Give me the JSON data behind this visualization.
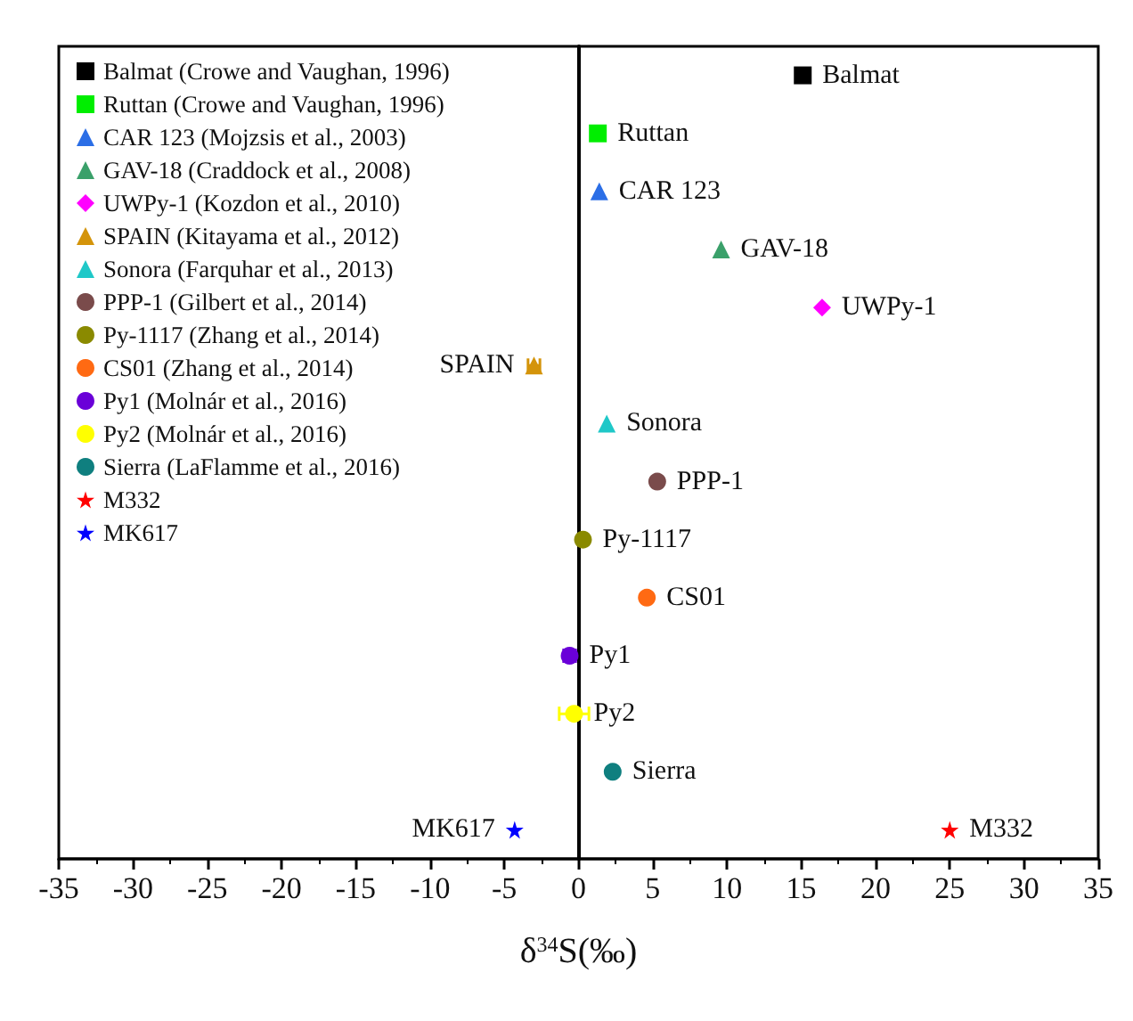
{
  "chart_data": {
    "type": "scatter",
    "orientation": "horizontal",
    "xlabel": "δ$^{34}$S(‰)",
    "categories": [
      null,
      null,
      null,
      null,
      null,
      null,
      null,
      null,
      null,
      null,
      null,
      null,
      null,
      null
    ],
    "xlim": [
      -35,
      35
    ],
    "xticks": [
      -35,
      -30,
      -25,
      -20,
      -15,
      -10,
      -5,
      0,
      5,
      10,
      15,
      20,
      25,
      30,
      35
    ],
    "legend": "top left",
    "series": [
      {
        "name": "Balmat (Crowe and Vaughan, 1996)",
        "color": "#000000",
        "marker": "square",
        "values": [
          15.1,
          null,
          null,
          null,
          null,
          null,
          null,
          null,
          null,
          null,
          null,
          null,
          null,
          null
        ],
        "value_labels": [
          "Balmat",
          null,
          null,
          null,
          null,
          null,
          null,
          null,
          null,
          null,
          null,
          null,
          null,
          null
        ]
      },
      {
        "name": "Ruttan (Crowe and Vaughan, 1996)",
        "color": "#00ee00",
        "marker": "square",
        "values": [
          null,
          1.3,
          null,
          null,
          null,
          null,
          null,
          null,
          null,
          null,
          null,
          null,
          null,
          null
        ],
        "value_labels": [
          null,
          "Ruttan",
          null,
          null,
          null,
          null,
          null,
          null,
          null,
          null,
          null,
          null,
          null,
          null
        ]
      },
      {
        "name": "CAR 123 (Mojzsis et al., 2003)",
        "color": "#2b6ee6",
        "marker": "triangle",
        "values": [
          null,
          null,
          1.4,
          null,
          null,
          null,
          null,
          null,
          null,
          null,
          null,
          null,
          null,
          null
        ],
        "value_labels": [
          null,
          null,
          "CAR 123",
          null,
          null,
          null,
          null,
          null,
          null,
          null,
          null,
          null,
          null,
          null
        ]
      },
      {
        "name": "GAV-18 (Craddock et al., 2008)",
        "color": "#3aa06a",
        "marker": "triangle",
        "values": [
          null,
          null,
          null,
          9.6,
          null,
          null,
          null,
          null,
          null,
          null,
          null,
          null,
          null,
          null
        ],
        "value_labels": [
          null,
          null,
          null,
          "GAV-18",
          null,
          null,
          null,
          null,
          null,
          null,
          null,
          null,
          null,
          null
        ]
      },
      {
        "name": "UWPy-1 (Kozdon et al., 2010)",
        "color": "#ff00ff",
        "marker": "diamond",
        "values": [
          null,
          null,
          null,
          null,
          16.4,
          null,
          null,
          null,
          null,
          null,
          null,
          null,
          null,
          null
        ],
        "value_labels": [
          null,
          null,
          null,
          null,
          "UWPy-1",
          null,
          null,
          null,
          null,
          null,
          null,
          null,
          null,
          null
        ]
      },
      {
        "name": "SPAIN (Kitayama et al., 2012)",
        "color": "#d4940a",
        "marker": "triangle",
        "values": [
          null,
          null,
          null,
          null,
          null,
          -3.0,
          null,
          null,
          null,
          null,
          null,
          null,
          null,
          null
        ],
        "errors": [
          null,
          null,
          null,
          null,
          null,
          0.4,
          null,
          null,
          null,
          null,
          null,
          null,
          null,
          null
        ],
        "value_labels": [
          null,
          null,
          null,
          null,
          null,
          "SPAIN",
          null,
          null,
          null,
          null,
          null,
          null,
          null,
          null
        ]
      },
      {
        "name": "Sonora (Farquhar et al., 2013)",
        "color": "#1fc8c8",
        "marker": "triangle",
        "values": [
          null,
          null,
          null,
          null,
          null,
          null,
          1.9,
          null,
          null,
          null,
          null,
          null,
          null,
          null
        ],
        "value_labels": [
          null,
          null,
          null,
          null,
          null,
          null,
          "Sonora",
          null,
          null,
          null,
          null,
          null,
          null,
          null
        ]
      },
      {
        "name": "PPP-1 (Gilbert et al., 2014)",
        "color": "#7a4b4b",
        "marker": "circle",
        "values": [
          null,
          null,
          null,
          null,
          null,
          null,
          null,
          5.3,
          null,
          null,
          null,
          null,
          null,
          null
        ],
        "value_labels": [
          null,
          null,
          null,
          null,
          null,
          null,
          null,
          "PPP-1",
          null,
          null,
          null,
          null,
          null,
          null
        ]
      },
      {
        "name": "Py-1117 (Zhang et al., 2014)",
        "color": "#8a8a00",
        "marker": "circle",
        "values": [
          null,
          null,
          null,
          null,
          null,
          null,
          null,
          null,
          0.3,
          null,
          null,
          null,
          null,
          null
        ],
        "value_labels": [
          null,
          null,
          null,
          null,
          null,
          null,
          null,
          null,
          "Py-1117",
          null,
          null,
          null,
          null,
          null
        ]
      },
      {
        "name": "CS01 (Zhang et al., 2014)",
        "color": "#ff6a13",
        "marker": "circle",
        "values": [
          null,
          null,
          null,
          null,
          null,
          null,
          null,
          null,
          null,
          4.6,
          null,
          null,
          null,
          null
        ],
        "value_labels": [
          null,
          null,
          null,
          null,
          null,
          null,
          null,
          null,
          null,
          "CS01",
          null,
          null,
          null,
          null
        ]
      },
      {
        "name": "Py1 (Molnár et al., 2016)",
        "color": "#6a00d8",
        "marker": "circle",
        "values": [
          null,
          null,
          null,
          null,
          null,
          null,
          null,
          null,
          null,
          null,
          -0.6,
          null,
          null,
          null
        ],
        "errors": [
          null,
          null,
          null,
          null,
          null,
          null,
          null,
          null,
          null,
          null,
          0.4,
          null,
          null,
          null
        ],
        "value_labels": [
          null,
          null,
          null,
          null,
          null,
          null,
          null,
          null,
          null,
          null,
          "Py1",
          null,
          null,
          null
        ]
      },
      {
        "name": "Py2 (Molnár et al., 2016)",
        "color": "#ffff00",
        "marker": "circle",
        "values": [
          null,
          null,
          null,
          null,
          null,
          null,
          null,
          null,
          null,
          null,
          null,
          -0.3,
          null,
          null
        ],
        "errors": [
          null,
          null,
          null,
          null,
          null,
          null,
          null,
          null,
          null,
          null,
          null,
          1.0,
          null,
          null
        ],
        "value_labels": [
          null,
          null,
          null,
          null,
          null,
          null,
          null,
          null,
          null,
          null,
          null,
          "Py2",
          null,
          null
        ]
      },
      {
        "name": "Sierra (LaFlamme et al., 2016)",
        "color": "#0f7f7f",
        "marker": "circle",
        "values": [
          null,
          null,
          null,
          null,
          null,
          null,
          null,
          null,
          null,
          null,
          null,
          null,
          2.3,
          null
        ],
        "value_labels": [
          null,
          null,
          null,
          null,
          null,
          null,
          null,
          null,
          null,
          null,
          null,
          null,
          "Sierra",
          null
        ]
      },
      {
        "name": "M332",
        "color": "#ff0000",
        "marker": "star",
        "values": [
          null,
          null,
          null,
          null,
          null,
          null,
          null,
          null,
          null,
          null,
          null,
          null,
          null,
          25.0
        ],
        "value_labels": [
          null,
          null,
          null,
          null,
          null,
          null,
          null,
          null,
          null,
          null,
          null,
          null,
          null,
          "M332"
        ]
      },
      {
        "name": "MK617",
        "color": "#0000ff",
        "marker": "star",
        "values": [
          null,
          null,
          null,
          null,
          null,
          null,
          null,
          null,
          null,
          null,
          null,
          null,
          null,
          -4.3
        ],
        "value_labels": [
          null,
          null,
          null,
          null,
          null,
          null,
          null,
          null,
          null,
          null,
          null,
          null,
          null,
          "MK617"
        ]
      }
    ]
  }
}
